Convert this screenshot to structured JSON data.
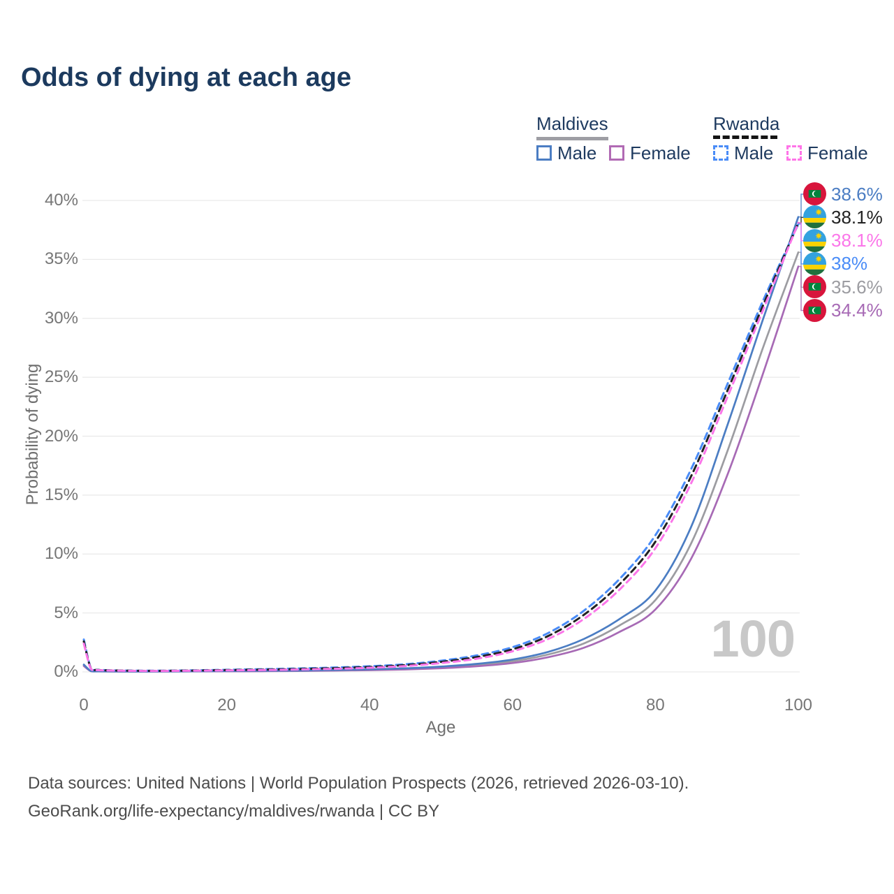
{
  "title": "Odds of dying at each age",
  "legend": {
    "maldives": {
      "label": "Maldives",
      "male": "Male",
      "female": "Female"
    },
    "rwanda": {
      "label": "Rwanda",
      "male": "Male",
      "female": "Female"
    }
  },
  "watermark": "100",
  "footer": {
    "line1": "Data sources: United Nations | World Population Prospects (2026, retrieved 2026-03-10).",
    "line2": "GeoRank.org/life-expectancy/maldives/rwanda | CC BY"
  },
  "icons": {
    "maldives_flag": {
      "red": "#D8153C",
      "green": "#00843D",
      "crescent": "#ffffff"
    },
    "rwanda_flag": {
      "blue": "#33A2DF",
      "yellow": "#FAD201",
      "green": "#20703D",
      "sun": "#FAD201"
    }
  },
  "chart_data": {
    "type": "line",
    "title": "Odds of dying at each age",
    "xlabel": "Age",
    "ylabel": "Probability of dying",
    "xlim": [
      0,
      100
    ],
    "ylim": [
      0,
      40
    ],
    "grid": "horizontal",
    "legend_position": "top-right",
    "x_ticks": [
      0,
      20,
      40,
      60,
      80,
      100
    ],
    "x_tick_labels": [
      "0",
      "20",
      "40",
      "60",
      "80",
      "100"
    ],
    "y_ticks": [
      0,
      5,
      10,
      15,
      20,
      25,
      30,
      35,
      40
    ],
    "y_tick_labels": [
      "0%",
      "5%",
      "10%",
      "15%",
      "20%",
      "25%",
      "30%",
      "35%",
      "40%"
    ],
    "x": [
      0,
      1,
      2,
      5,
      10,
      15,
      20,
      25,
      30,
      35,
      40,
      45,
      50,
      55,
      60,
      65,
      70,
      75,
      80,
      85,
      90,
      95,
      100
    ],
    "series": [
      {
        "key": "maldives_total",
        "name": "Maldives (both sexes)",
        "country": "Maldives",
        "sex": "Both",
        "style": "solid",
        "color": "#9c9ca1",
        "flag": "maldives",
        "end_label": "35.6%",
        "end_value": 35.6,
        "label_rank": 4,
        "values": [
          0.56,
          0.065,
          0.045,
          0.035,
          0.035,
          0.05,
          0.065,
          0.08,
          0.1,
          0.13,
          0.18,
          0.25,
          0.38,
          0.58,
          0.9,
          1.48,
          2.42,
          3.95,
          6.1,
          10.9,
          18.6,
          27.4,
          35.6
        ]
      },
      {
        "key": "maldives_female",
        "name": "Maldives Female",
        "country": "Maldives",
        "sex": "Female",
        "style": "solid",
        "color": "#a76ab5",
        "flag": "maldives",
        "end_label": "34.4%",
        "end_value": 34.4,
        "label_rank": 5,
        "values": [
          0.5,
          0.06,
          0.04,
          0.03,
          0.03,
          0.04,
          0.05,
          0.06,
          0.08,
          0.11,
          0.15,
          0.21,
          0.31,
          0.48,
          0.75,
          1.25,
          2.05,
          3.4,
          5.3,
          9.6,
          16.6,
          25.2,
          34.4
        ]
      },
      {
        "key": "maldives_male",
        "name": "Maldives Male",
        "country": "Maldives",
        "sex": "Male",
        "style": "solid",
        "color": "#4b7dc3",
        "flag": "maldives",
        "end_label": "38.6%",
        "end_value": 38.6,
        "label_rank": 0,
        "values": [
          0.62,
          0.07,
          0.05,
          0.04,
          0.04,
          0.06,
          0.08,
          0.1,
          0.12,
          0.16,
          0.22,
          0.3,
          0.45,
          0.68,
          1.05,
          1.7,
          2.8,
          4.5,
          6.9,
          12.3,
          20.8,
          29.8,
          38.6
        ]
      },
      {
        "key": "rwanda_male",
        "name": "Rwanda Male",
        "country": "Rwanda",
        "sex": "Male",
        "style": "dashed",
        "color": "#4a8cf7",
        "flag": "rwanda",
        "end_label": "38%",
        "end_value": 38.0,
        "label_rank": 3,
        "values": [
          2.75,
          0.3,
          0.18,
          0.12,
          0.1,
          0.13,
          0.18,
          0.23,
          0.29,
          0.37,
          0.48,
          0.65,
          0.95,
          1.4,
          2.1,
          3.3,
          5.2,
          7.9,
          11.6,
          17.2,
          24.3,
          31.4,
          38.0
        ]
      },
      {
        "key": "rwanda_total",
        "name": "Rwanda (both sexes)",
        "country": "Rwanda",
        "sex": "Both",
        "style": "dashed",
        "color": "#222222",
        "flag": "rwanda",
        "end_label": "38.1%",
        "end_value": 38.1,
        "label_rank": 1,
        "values": [
          2.58,
          0.28,
          0.165,
          0.11,
          0.09,
          0.115,
          0.155,
          0.195,
          0.245,
          0.315,
          0.415,
          0.575,
          0.85,
          1.26,
          1.92,
          3.05,
          4.85,
          7.45,
          11.05,
          16.6,
          23.75,
          31.0,
          38.1
        ]
      },
      {
        "key": "rwanda_female",
        "name": "Rwanda Female",
        "country": "Rwanda",
        "sex": "Female",
        "style": "dashed",
        "color": "#fb76e9",
        "flag": "rwanda",
        "end_label": "38.1%",
        "end_value": 38.1,
        "label_rank": 2,
        "values": [
          2.4,
          0.26,
          0.15,
          0.1,
          0.08,
          0.1,
          0.13,
          0.16,
          0.2,
          0.26,
          0.35,
          0.5,
          0.75,
          1.12,
          1.75,
          2.8,
          4.5,
          7.0,
          10.5,
          16.0,
          23.2,
          30.6,
          38.1
        ]
      }
    ]
  }
}
